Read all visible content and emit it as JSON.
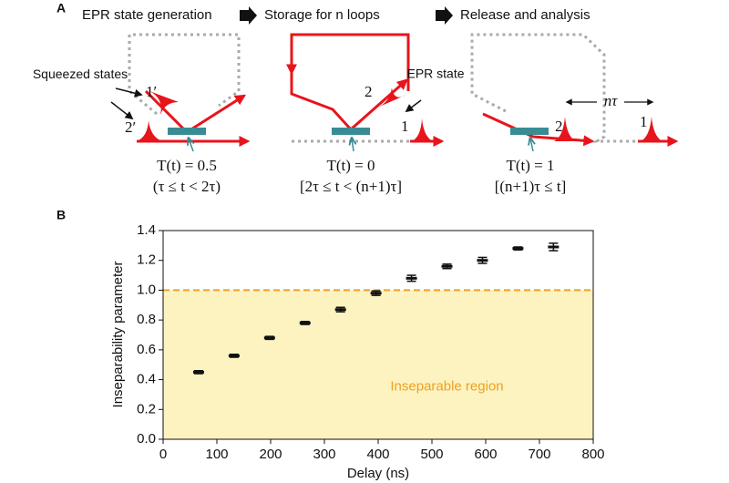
{
  "panel_a": {
    "label": "A",
    "steps": [
      "EPR state generation",
      "Storage for n loops",
      "Release and analysis"
    ],
    "squeezed_label": "Squeezed states",
    "epr_label": "EPR state",
    "mode_labels": [
      "1′",
      "2′",
      "2",
      "1",
      "2",
      "1"
    ],
    "loop_delay": "nτ",
    "conditions": [
      {
        "transmission": "T(t) = 0.5",
        "interval": "(τ ≤ t < 2τ)"
      },
      {
        "transmission": "T(t) = 0",
        "interval": "[2τ ≤ t < (n+1)τ]"
      },
      {
        "transmission": "T(t) = 1",
        "interval": "[(n+1)τ ≤ t]"
      }
    ]
  },
  "chart_data": {
    "type": "errorbar",
    "panel_label": "B",
    "x_label": "Delay (ns)",
    "y_label": "Inseparability parameter",
    "x": [
      66,
      132,
      198,
      264,
      330,
      396,
      462,
      528,
      594,
      660,
      726
    ],
    "values": [
      0.45,
      0.56,
      0.68,
      0.78,
      0.87,
      0.98,
      1.08,
      1.16,
      1.2,
      1.28,
      1.29
    ],
    "errors": [
      0.01,
      0.01,
      0.01,
      0.01,
      0.015,
      0.015,
      0.02,
      0.015,
      0.02,
      0.01,
      0.025
    ],
    "color": "#111111",
    "threshold": 1.0,
    "threshold_color": "#f0a020",
    "region_color": "#fcf3c0",
    "region_label": "Inseparable region",
    "xlim": [
      0,
      800
    ],
    "xticks": [
      0,
      100,
      200,
      300,
      400,
      500,
      600,
      700,
      800
    ],
    "ylim": [
      0,
      1.4
    ],
    "yticks": [
      {
        "value": 0,
        "label": "0.0"
      },
      0.2,
      0.4,
      0.6,
      0.8,
      {
        "value": 1,
        "label": "1.0"
      },
      1.2,
      1.4
    ]
  }
}
